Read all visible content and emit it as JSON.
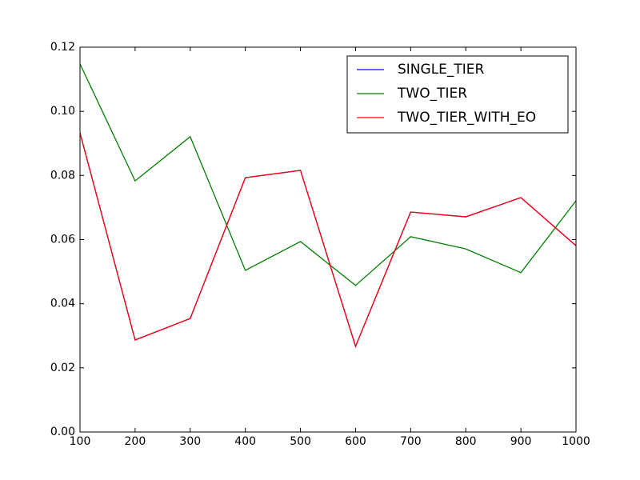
{
  "chart_data": {
    "type": "line",
    "x": [
      100,
      200,
      300,
      400,
      500,
      600,
      700,
      800,
      900,
      1000
    ],
    "series": [
      {
        "name": "SINGLE_TIER",
        "color": "#0000ff",
        "values": [
          0.0933,
          0.0287,
          0.0354,
          0.0793,
          0.0816,
          0.0267,
          0.0686,
          0.0671,
          0.0731,
          0.0581
        ]
      },
      {
        "name": "TWO_TIER",
        "color": "#008000",
        "values": [
          0.1148,
          0.0783,
          0.0921,
          0.0504,
          0.0594,
          0.0457,
          0.0609,
          0.0571,
          0.0497,
          0.0721
        ]
      },
      {
        "name": "TWO_TIER_WITH_EO",
        "color": "#ff0000",
        "values": [
          0.0933,
          0.0287,
          0.0354,
          0.0793,
          0.0816,
          0.0267,
          0.0686,
          0.0671,
          0.0731,
          0.0581
        ]
      }
    ],
    "xlim": [
      100,
      1000
    ],
    "xticks": [
      100,
      200,
      300,
      400,
      500,
      600,
      700,
      800,
      900,
      1000
    ],
    "ylim": [
      0,
      0.12
    ],
    "yticks": [
      {
        "value": 0,
        "label": "0.00"
      },
      0.02,
      0.04,
      0.06,
      0.08,
      {
        "value": 0.1,
        "label": "0.10"
      },
      0.12
    ],
    "legend": "upper right"
  }
}
